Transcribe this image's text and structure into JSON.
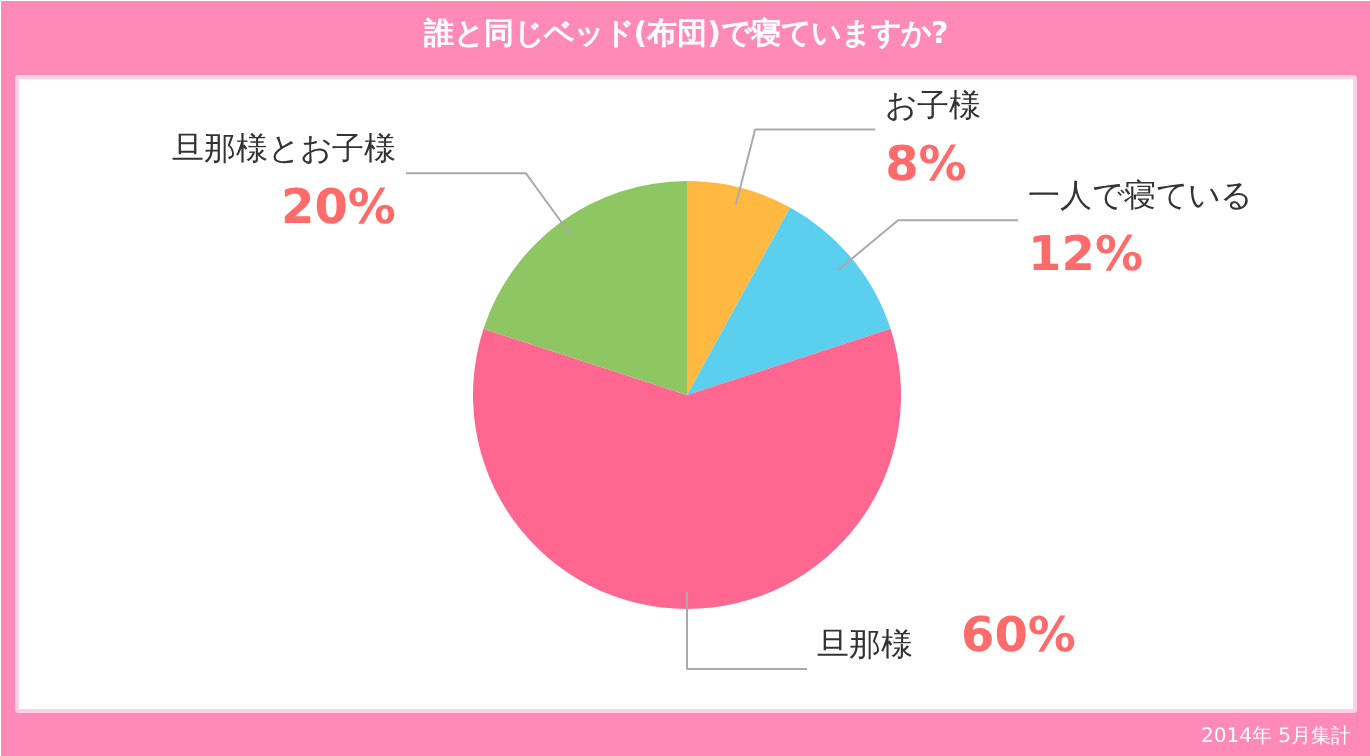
{
  "chart_data": {
    "type": "pie",
    "title": "誰と同じベッド(布団)で寝ていますか?",
    "categories": [
      "お子様",
      "一人で寝ている",
      "旦那様",
      "旦那様とお子様"
    ],
    "values": [
      8,
      12,
      60,
      20
    ],
    "colors": [
      "#ffb940",
      "#5acfee",
      "#ff6690",
      "#8dc663"
    ],
    "value_labels": [
      "8%",
      "12%",
      "60%",
      "20%"
    ],
    "annotations": [
      "2014年 5月集計"
    ]
  }
}
